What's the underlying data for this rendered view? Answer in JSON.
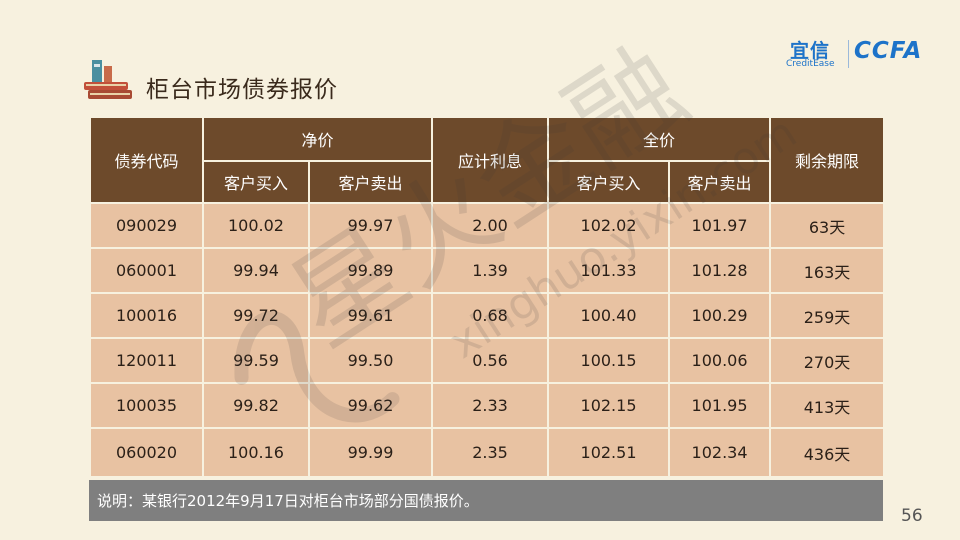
{
  "header": {
    "title": "柜台市场债券报价",
    "logo_yixin_cn": "宜信",
    "logo_yixin_en": "CreditEase",
    "logo_ccfa": "CCFA"
  },
  "table": {
    "headers": {
      "code": "债券代码",
      "net_price": "净价",
      "accrued_interest": "应计利息",
      "full_price": "全价",
      "remaining_term": "剩余期限",
      "client_buy": "客户买入",
      "client_sell": "客户卖出"
    },
    "rows": [
      {
        "code": "090029",
        "net_buy": "100.02",
        "net_sell": "99.97",
        "interest": "2.00",
        "full_buy": "102.02",
        "full_sell": "101.97",
        "term": "63天"
      },
      {
        "code": "060001",
        "net_buy": "99.94",
        "net_sell": "99.89",
        "interest": "1.39",
        "full_buy": "101.33",
        "full_sell": "101.28",
        "term": "163天"
      },
      {
        "code": "100016",
        "net_buy": "99.72",
        "net_sell": "99.61",
        "interest": "0.68",
        "full_buy": "100.40",
        "full_sell": "100.29",
        "term": "259天"
      },
      {
        "code": "120011",
        "net_buy": "99.59",
        "net_sell": "99.50",
        "interest": "0.56",
        "full_buy": "100.15",
        "full_sell": "100.06",
        "term": "270天"
      },
      {
        "code": "100035",
        "net_buy": "99.82",
        "net_sell": "99.62",
        "interest": "2.33",
        "full_buy": "102.15",
        "full_sell": "101.95",
        "term": "413天"
      },
      {
        "code": "060020",
        "net_buy": "100.16",
        "net_sell": "99.99",
        "interest": "2.35",
        "full_buy": "102.51",
        "full_sell": "102.34",
        "term": "436天"
      }
    ]
  },
  "note": "说明：某银行2012年9月17日对柜台市场部分国债报价。",
  "page_number": "56",
  "watermark": {
    "text_cn": "星火金融",
    "text_en": "xinghuo.yixin.com"
  },
  "colors": {
    "background": "#f7f1df",
    "header_brown": "#6d4a2b",
    "cell_tan": "#e8c2a2",
    "note_gray": "#7f7f7f",
    "logo_blue": "#1d73c9"
  }
}
